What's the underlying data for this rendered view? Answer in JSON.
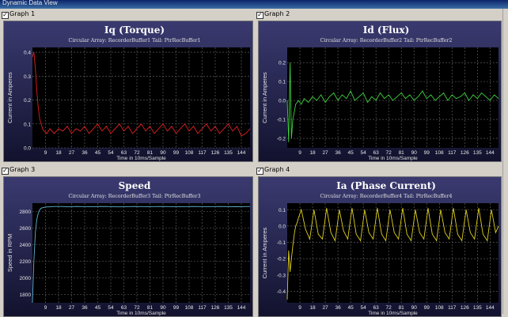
{
  "window": {
    "title": "Dynamic Data View"
  },
  "panels": [
    {
      "checkbox": "Graph 1",
      "checked": true
    },
    {
      "checkbox": "Graph 2",
      "checked": true
    },
    {
      "checkbox": "Graph 3",
      "checked": true
    },
    {
      "checkbox": "Graph 4",
      "checked": true
    }
  ],
  "chart_data": [
    {
      "type": "line",
      "title": "Iq (Torque)",
      "subtitle": "Circular Array: RecorderBuffer1 Tail: PtrRecBuffer1",
      "xlabel": "Time in 10ms/Sample",
      "ylabel": "Current in Amperes",
      "color": "#e02020",
      "xlim": [
        0,
        150
      ],
      "ylim": [
        0,
        0.42
      ],
      "xticks": [
        9,
        18,
        27,
        36,
        45,
        54,
        63,
        72,
        81,
        90,
        99,
        108,
        117,
        126,
        135,
        144
      ],
      "yticks": [
        0.0,
        0.1,
        0.2,
        0.3,
        0.4
      ],
      "ytick_labels": [
        "0.0",
        "0.1",
        "0.2",
        "0.3",
        "0.4"
      ],
      "x": [
        0,
        1,
        2,
        3,
        4,
        5,
        6,
        7,
        8,
        10,
        12,
        15,
        18,
        21,
        24,
        27,
        30,
        33,
        36,
        39,
        42,
        45,
        48,
        51,
        54,
        57,
        60,
        63,
        66,
        69,
        72,
        75,
        78,
        81,
        84,
        87,
        90,
        93,
        96,
        99,
        102,
        105,
        108,
        111,
        114,
        117,
        120,
        123,
        126,
        129,
        132,
        135,
        138,
        141,
        144,
        147,
        150
      ],
      "values": [
        0.38,
        0.4,
        0.33,
        0.24,
        0.17,
        0.12,
        0.1,
        0.08,
        0.07,
        0.06,
        0.08,
        0.06,
        0.08,
        0.07,
        0.09,
        0.06,
        0.08,
        0.07,
        0.09,
        0.06,
        0.08,
        0.1,
        0.07,
        0.09,
        0.06,
        0.08,
        0.1,
        0.07,
        0.09,
        0.06,
        0.08,
        0.1,
        0.07,
        0.09,
        0.06,
        0.08,
        0.1,
        0.07,
        0.09,
        0.06,
        0.08,
        0.1,
        0.07,
        0.09,
        0.06,
        0.08,
        0.1,
        0.07,
        0.09,
        0.06,
        0.08,
        0.1,
        0.07,
        0.09,
        0.05,
        0.06,
        0.08
      ]
    },
    {
      "type": "line",
      "title": "Id (Flux)",
      "subtitle": "Circular Array: RecorderBuffer2 Tail: PtrRecBuffer2",
      "xlabel": "Time in 10ms/Sample",
      "ylabel": "Current in Amperes",
      "color": "#40d040",
      "xlim": [
        0,
        150
      ],
      "ylim": [
        -0.25,
        0.28
      ],
      "xticks": [
        9,
        18,
        27,
        36,
        45,
        54,
        63,
        72,
        81,
        90,
        99,
        108,
        117,
        126,
        135,
        144
      ],
      "yticks": [
        -0.2,
        -0.1,
        0.0,
        0.1,
        0.2
      ],
      "ytick_labels": [
        "-0.2",
        "-0.1",
        "0.0",
        "0.1",
        "0.2"
      ],
      "x": [
        0,
        1,
        2,
        3,
        4,
        5,
        6,
        7,
        8,
        10,
        12,
        15,
        18,
        21,
        24,
        27,
        30,
        33,
        36,
        39,
        42,
        45,
        48,
        51,
        54,
        57,
        60,
        63,
        66,
        69,
        72,
        75,
        78,
        81,
        84,
        87,
        90,
        93,
        96,
        99,
        102,
        105,
        108,
        111,
        114,
        117,
        120,
        123,
        126,
        129,
        132,
        135,
        138,
        141,
        144,
        147,
        150
      ],
      "values": [
        0.0,
        -0.22,
        0.2,
        -0.2,
        -0.1,
        -0.06,
        -0.02,
        -0.01,
        0.0,
        -0.02,
        0.01,
        -0.01,
        0.02,
        0.0,
        0.03,
        -0.01,
        0.02,
        0.04,
        0.0,
        0.03,
        0.01,
        0.05,
        0.0,
        0.02,
        0.04,
        -0.01,
        0.02,
        0.0,
        0.04,
        0.01,
        0.03,
        0.0,
        0.02,
        0.04,
        0.01,
        0.03,
        0.0,
        0.02,
        0.05,
        0.01,
        0.03,
        0.0,
        0.02,
        0.04,
        0.0,
        0.03,
        0.01,
        0.02,
        0.04,
        0.0,
        0.03,
        0.01,
        0.04,
        0.02,
        0.0,
        0.03,
        0.01
      ]
    },
    {
      "type": "line",
      "title": "Speed",
      "subtitle": "Circular Array: RecorderBuffer3 Tail: PtrRecBuffer3",
      "xlabel": "Time in 10ms/Sample",
      "ylabel": "Speed in RPM",
      "color": "#60b0d0",
      "xlim": [
        0,
        150
      ],
      "ylim": [
        1700,
        2900
      ],
      "xticks": [
        9,
        18,
        27,
        36,
        45,
        54,
        63,
        72,
        81,
        90,
        99,
        108,
        117,
        126,
        135,
        144
      ],
      "yticks": [
        1800,
        2000,
        2200,
        2400,
        2600,
        2800
      ],
      "ytick_labels": [
        "1800",
        "2000",
        "2200",
        "2400",
        "2600",
        "2800"
      ],
      "x": [
        0,
        1,
        2,
        3,
        4,
        5,
        6,
        8,
        10,
        12,
        15,
        20,
        25,
        30,
        40,
        50,
        60,
        70,
        80,
        90,
        100,
        110,
        120,
        130,
        140,
        150
      ],
      "values": [
        1700,
        2200,
        2550,
        2700,
        2780,
        2820,
        2840,
        2850,
        2855,
        2855,
        2860,
        2860,
        2855,
        2860,
        2858,
        2860,
        2855,
        2860,
        2858,
        2860,
        2856,
        2860,
        2858,
        2860,
        2857,
        2860
      ]
    },
    {
      "type": "line",
      "title": "Ia (Phase Current)",
      "subtitle": "Circular Array: RecorderBuffer4 Tail: PtrRecBuffer4",
      "xlabel": "Time in 10ms/Sample",
      "ylabel": "Current in Amperes",
      "color": "#e0d020",
      "xlim": [
        0,
        150
      ],
      "ylim": [
        -0.47,
        0.14
      ],
      "xticks": [
        9,
        18,
        27,
        36,
        45,
        54,
        63,
        72,
        81,
        90,
        99,
        108,
        117,
        126,
        135,
        144
      ],
      "yticks": [
        -0.4,
        -0.3,
        -0.2,
        -0.1,
        0.0,
        0.1
      ],
      "ytick_labels": [
        "-0.4",
        "-0.3",
        "-0.2",
        "-0.1",
        "0.0",
        "0.1"
      ],
      "x": [
        0,
        1,
        2,
        3,
        4,
        5,
        6,
        7,
        8,
        10,
        13,
        16,
        19,
        22,
        25,
        28,
        31,
        34,
        37,
        40,
        43,
        46,
        49,
        52,
        55,
        58,
        61,
        64,
        67,
        70,
        73,
        76,
        79,
        82,
        85,
        88,
        91,
        94,
        97,
        100,
        103,
        106,
        109,
        112,
        115,
        118,
        121,
        124,
        127,
        130,
        133,
        136,
        139,
        142,
        145,
        148,
        150
      ],
      "values": [
        -0.45,
        -0.15,
        -0.28,
        -0.2,
        -0.12,
        -0.05,
        0.0,
        0.02,
        0.05,
        0.1,
        -0.02,
        -0.08,
        0.1,
        -0.05,
        -0.08,
        0.11,
        -0.04,
        -0.09,
        0.1,
        -0.03,
        -0.08,
        0.11,
        -0.05,
        -0.09,
        0.1,
        -0.04,
        -0.08,
        0.11,
        -0.05,
        -0.09,
        0.1,
        -0.04,
        -0.08,
        0.11,
        -0.05,
        -0.09,
        0.1,
        -0.04,
        -0.08,
        0.11,
        -0.05,
        -0.09,
        0.1,
        -0.04,
        -0.08,
        0.11,
        -0.05,
        -0.09,
        0.1,
        -0.04,
        -0.08,
        0.11,
        -0.05,
        -0.09,
        0.1,
        -0.04,
        0.0
      ]
    }
  ]
}
